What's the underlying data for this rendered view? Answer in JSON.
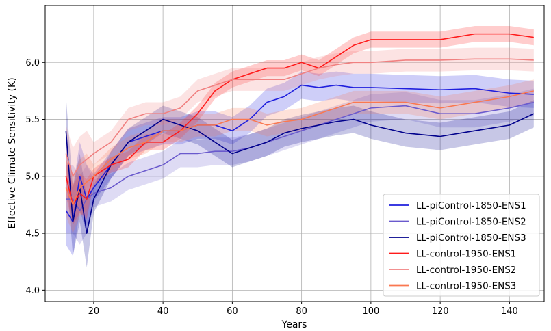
{
  "chart_data": {
    "type": "line",
    "title": "",
    "xlabel": "Years",
    "ylabel": "Effective Climate Sensitivity (K)",
    "xlim": [
      6,
      150
    ],
    "ylim": [
      3.9,
      6.5
    ],
    "xticks": [
      20,
      40,
      60,
      80,
      100,
      120,
      140
    ],
    "yticks": [
      4.0,
      4.5,
      5.0,
      5.5,
      6.0
    ],
    "xtick_labels": [
      "20",
      "40",
      "60",
      "80",
      "100",
      "120",
      "140"
    ],
    "ytick_labels": [
      "4.0",
      "4.5",
      "5.0",
      "5.5",
      "6.0"
    ],
    "grid": true,
    "legend_position": "lower-right",
    "shaded_band": "uncertainty range around each series",
    "series": [
      {
        "name": "LL-piControl-1850-ENS1",
        "color": "#1f1fdd",
        "x": [
          12,
          14,
          16,
          18,
          20,
          25,
          30,
          35,
          40,
          45,
          50,
          55,
          60,
          65,
          70,
          75,
          80,
          85,
          90,
          95,
          100,
          110,
          120,
          130,
          140,
          147
        ],
        "y": [
          4.7,
          4.6,
          5.0,
          4.8,
          4.9,
          5.1,
          5.3,
          5.35,
          5.4,
          5.4,
          5.45,
          5.45,
          5.4,
          5.5,
          5.65,
          5.7,
          5.8,
          5.78,
          5.8,
          5.78,
          5.78,
          5.77,
          5.76,
          5.77,
          5.73,
          5.72
        ],
        "band_halfwidth": 0.12
      },
      {
        "name": "LL-piControl-1850-ENS2",
        "color": "#6a5acd",
        "x": [
          12,
          14,
          16,
          18,
          20,
          25,
          30,
          35,
          40,
          45,
          50,
          55,
          60,
          65,
          70,
          75,
          80,
          85,
          90,
          95,
          100,
          110,
          120,
          130,
          140,
          147
        ],
        "y": [
          4.8,
          4.8,
          4.7,
          4.8,
          4.85,
          4.9,
          5.0,
          5.05,
          5.1,
          5.2,
          5.2,
          5.22,
          5.22,
          5.25,
          5.3,
          5.35,
          5.4,
          5.45,
          5.5,
          5.55,
          5.6,
          5.62,
          5.55,
          5.55,
          5.6,
          5.65
        ],
        "band_halfwidth": 0.12
      },
      {
        "name": "LL-piControl-1850-ENS3",
        "color": "#00008b",
        "x": [
          12,
          14,
          16,
          18,
          20,
          25,
          30,
          35,
          40,
          45,
          50,
          55,
          60,
          65,
          70,
          75,
          80,
          85,
          90,
          95,
          100,
          110,
          120,
          130,
          140,
          147
        ],
        "y": [
          5.4,
          4.6,
          4.9,
          4.5,
          4.8,
          5.1,
          5.3,
          5.4,
          5.5,
          5.45,
          5.4,
          5.3,
          5.2,
          5.25,
          5.3,
          5.38,
          5.42,
          5.45,
          5.48,
          5.5,
          5.45,
          5.38,
          5.35,
          5.4,
          5.45,
          5.55
        ],
        "band_halfwidth": 0.12
      },
      {
        "name": "LL-control-1950-ENS1",
        "color": "#ff1a1a",
        "x": [
          12,
          14,
          16,
          18,
          20,
          25,
          30,
          35,
          40,
          45,
          50,
          55,
          60,
          65,
          70,
          75,
          80,
          85,
          90,
          95,
          100,
          110,
          120,
          130,
          140,
          147
        ],
        "y": [
          5.0,
          4.75,
          4.85,
          4.8,
          5.0,
          5.1,
          5.15,
          5.3,
          5.3,
          5.4,
          5.55,
          5.75,
          5.85,
          5.9,
          5.95,
          5.95,
          6.0,
          5.95,
          6.05,
          6.15,
          6.2,
          6.2,
          6.2,
          6.25,
          6.25,
          6.22
        ],
        "band_halfwidth": 0.07
      },
      {
        "name": "LL-control-1950-ENS2",
        "color": "#f08080",
        "x": [
          12,
          14,
          16,
          18,
          20,
          25,
          30,
          35,
          40,
          45,
          50,
          55,
          60,
          65,
          70,
          75,
          80,
          85,
          90,
          95,
          100,
          110,
          120,
          130,
          140,
          147
        ],
        "y": [
          5.2,
          5.0,
          5.1,
          5.15,
          5.2,
          5.3,
          5.5,
          5.55,
          5.55,
          5.6,
          5.75,
          5.8,
          5.85,
          5.85,
          5.85,
          5.85,
          5.9,
          5.95,
          5.98,
          6.0,
          6.0,
          6.02,
          6.02,
          6.03,
          6.03,
          6.02
        ],
        "band_halfwidth": 0.1
      },
      {
        "name": "LL-control-1950-ENS3",
        "color": "#fa7850",
        "x": [
          12,
          14,
          16,
          18,
          20,
          25,
          30,
          35,
          40,
          45,
          50,
          55,
          60,
          65,
          70,
          75,
          80,
          85,
          90,
          95,
          100,
          110,
          120,
          130,
          140,
          147
        ],
        "y": [
          4.9,
          4.75,
          4.9,
          4.95,
          5.0,
          5.15,
          5.25,
          5.3,
          5.4,
          5.4,
          5.45,
          5.45,
          5.5,
          5.5,
          5.45,
          5.48,
          5.5,
          5.55,
          5.6,
          5.65,
          5.65,
          5.65,
          5.6,
          5.65,
          5.7,
          5.75
        ],
        "band_halfwidth": 0.1
      }
    ]
  }
}
